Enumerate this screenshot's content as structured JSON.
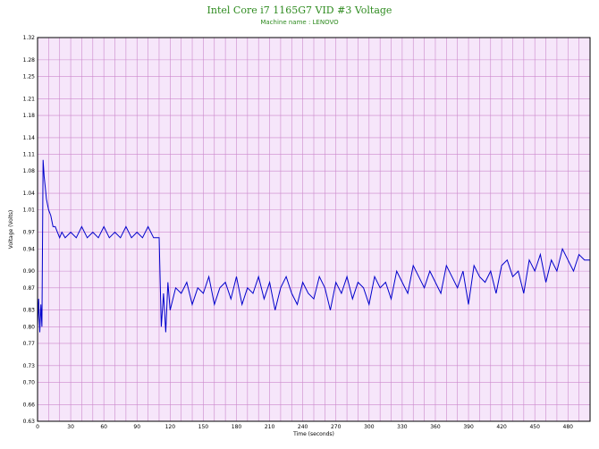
{
  "chart_data": {
    "type": "line",
    "title": "Intel Core i7 1165G7 VID #3 Voltage",
    "subtitle": "Machine name : LENOVO",
    "xlabel": "Time (seconds)",
    "ylabel": "Voltage (Volts)",
    "xlim": [
      0,
      500
    ],
    "ylim": [
      0.63,
      1.32
    ],
    "xticks": [
      0,
      30,
      60,
      90,
      120,
      150,
      180,
      210,
      240,
      270,
      300,
      330,
      360,
      390,
      420,
      450,
      480
    ],
    "yticks": [
      0.63,
      0.66,
      0.7,
      0.73,
      0.77,
      0.8,
      0.83,
      0.87,
      0.9,
      0.94,
      0.97,
      1.01,
      1.04,
      1.08,
      1.11,
      1.14,
      1.18,
      1.21,
      1.25,
      1.28,
      1.32
    ],
    "grid": true,
    "colors": {
      "line": "#0000cc",
      "plot_bg": "#f6e6fa",
      "grid": "#cc88cc",
      "title": "#2e8b1f"
    },
    "series": [
      {
        "values_x": [
          0,
          1,
          2,
          3,
          4,
          5,
          6,
          7,
          8,
          9,
          10,
          12,
          14,
          16,
          18,
          20,
          22,
          25,
          30,
          35,
          40,
          45,
          50,
          55,
          60,
          65,
          70,
          75,
          80,
          85,
          90,
          95,
          100,
          105,
          108,
          109,
          110,
          112,
          114,
          116,
          118,
          120,
          125,
          130,
          135,
          140,
          145,
          150,
          155,
          160,
          165,
          170,
          175,
          180,
          185,
          190,
          195,
          200,
          205,
          210,
          215,
          220,
          225,
          230,
          235,
          240,
          245,
          250,
          255,
          260,
          265,
          270,
          275,
          280,
          285,
          290,
          295,
          300,
          305,
          310,
          315,
          320,
          325,
          330,
          335,
          340,
          345,
          350,
          355,
          360,
          365,
          370,
          375,
          380,
          385,
          390,
          395,
          400,
          405,
          410,
          415,
          420,
          425,
          430,
          435,
          440,
          445,
          450,
          455,
          460,
          465,
          470,
          475,
          480,
          485,
          490,
          495,
          500
        ],
        "values_y": [
          0.8,
          0.85,
          0.79,
          0.84,
          0.8,
          1.1,
          1.07,
          1.05,
          1.03,
          1.02,
          1.01,
          1.0,
          0.98,
          0.98,
          0.97,
          0.96,
          0.97,
          0.96,
          0.97,
          0.96,
          0.98,
          0.96,
          0.97,
          0.96,
          0.98,
          0.96,
          0.97,
          0.96,
          0.98,
          0.96,
          0.97,
          0.96,
          0.98,
          0.96,
          0.96,
          0.96,
          0.96,
          0.8,
          0.86,
          0.79,
          0.88,
          0.83,
          0.87,
          0.86,
          0.88,
          0.84,
          0.87,
          0.86,
          0.89,
          0.84,
          0.87,
          0.88,
          0.85,
          0.89,
          0.84,
          0.87,
          0.86,
          0.89,
          0.85,
          0.88,
          0.83,
          0.87,
          0.89,
          0.86,
          0.84,
          0.88,
          0.86,
          0.85,
          0.89,
          0.87,
          0.83,
          0.88,
          0.86,
          0.89,
          0.85,
          0.88,
          0.87,
          0.84,
          0.89,
          0.87,
          0.88,
          0.85,
          0.9,
          0.88,
          0.86,
          0.91,
          0.89,
          0.87,
          0.9,
          0.88,
          0.86,
          0.91,
          0.89,
          0.87,
          0.9,
          0.84,
          0.91,
          0.89,
          0.88,
          0.9,
          0.86,
          0.91,
          0.92,
          0.89,
          0.9,
          0.86,
          0.92,
          0.9,
          0.93,
          0.88,
          0.92,
          0.9,
          0.94,
          0.92,
          0.9,
          0.93,
          0.92,
          0.92
        ]
      }
    ]
  }
}
